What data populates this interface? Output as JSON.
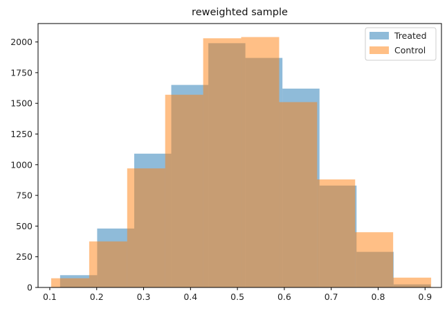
{
  "chart_data": {
    "type": "bar",
    "title": "reweighted sample",
    "xlabel": "",
    "ylabel": "",
    "xlim": [
      0.075,
      0.935
    ],
    "ylim": [
      0,
      2150
    ],
    "xticks": [
      0.1,
      0.2,
      0.3,
      0.4,
      0.5,
      0.6,
      0.7,
      0.8,
      0.9
    ],
    "xtick_labels": [
      "0.1",
      "0.2",
      "0.3",
      "0.4",
      "0.5",
      "0.6",
      "0.7",
      "0.8",
      "0.9"
    ],
    "yticks": [
      0,
      250,
      500,
      750,
      1000,
      1250,
      1500,
      1750,
      2000
    ],
    "ytick_labels": [
      "0",
      "250",
      "500",
      "750",
      "1000",
      "1250",
      "1500",
      "1750",
      "2000"
    ],
    "legend_position": "top-right",
    "grid": false,
    "series": [
      {
        "name": "Treated",
        "color": "#1f77b4",
        "alpha": 0.5,
        "bin_edges": [
          0.122,
          0.201,
          0.28,
          0.359,
          0.438,
          0.517,
          0.596,
          0.675,
          0.754,
          0.833,
          0.912
        ],
        "values": [
          100,
          480,
          1090,
          1650,
          1990,
          1870,
          1620,
          830,
          290,
          25
        ]
      },
      {
        "name": "Control",
        "color": "#ff7f0e",
        "alpha": 0.5,
        "bin_edges": [
          0.103,
          0.184,
          0.265,
          0.346,
          0.427,
          0.508,
          0.589,
          0.67,
          0.751,
          0.832,
          0.913
        ],
        "values": [
          75,
          375,
          970,
          1570,
          2030,
          2040,
          1510,
          880,
          450,
          80
        ]
      }
    ]
  }
}
